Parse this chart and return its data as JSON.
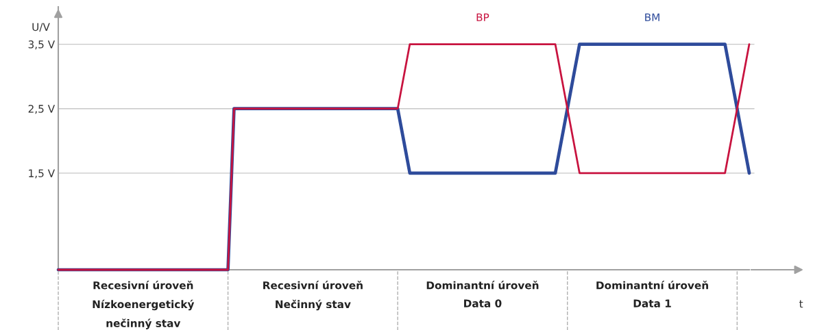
{
  "chart_data": {
    "type": "line",
    "ylabel": "U/V",
    "xlabel": "t",
    "categories": [
      null,
      null,
      null,
      null,
      null,
      null,
      null,
      null,
      null,
      null,
      null,
      null,
      null,
      null,
      "Recesivní úroveň\nNízkoenergetický\nnečinný stav",
      null,
      null,
      null,
      null,
      null,
      null,
      null,
      null,
      null,
      null,
      null,
      null,
      null,
      null,
      null,
      null,
      null,
      null,
      null,
      null,
      null,
      null,
      null,
      null,
      null,
      null,
      null,
      "Recesivní úroveň\nNečinný stav",
      null,
      null,
      null,
      null,
      null,
      null,
      null,
      null,
      null,
      null,
      null,
      null,
      null,
      null,
      null,
      null,
      null,
      null,
      null,
      null,
      null,
      null,
      null,
      null,
      null,
      null,
      null,
      "Dominantní úroveň\nData 0",
      null,
      null,
      null,
      null,
      null,
      null,
      null,
      null,
      null,
      null,
      null,
      null,
      null,
      null,
      null,
      null,
      null,
      null,
      null,
      null,
      null,
      null,
      null,
      null,
      null,
      null,
      null,
      "Dominantní úroveň\nData 1",
      null,
      null,
      null,
      null,
      null,
      null,
      null,
      null,
      null,
      null,
      null,
      null,
      null,
      null,
      null,
      null
    ],
    "series": [
      {
        "name": "BP",
        "color": "#c8133f",
        "values": [
          0,
          0,
          0,
          0,
          0,
          0,
          0,
          0,
          0,
          0,
          0,
          0,
          0,
          0,
          0,
          0,
          0,
          0,
          0,
          0,
          0,
          0,
          0,
          0,
          0,
          0,
          0,
          0,
          0,
          2.5,
          2.5,
          2.5,
          2.5,
          2.5,
          2.5,
          2.5,
          2.5,
          2.5,
          2.5,
          2.5,
          2.5,
          2.5,
          2.5,
          2.5,
          2.5,
          2.5,
          2.5,
          2.5,
          2.5,
          2.5,
          2.5,
          2.5,
          2.5,
          2.5,
          2.5,
          2.5,
          2.5,
          3.0,
          3.5,
          3.5,
          3.5,
          3.5,
          3.5,
          3.5,
          3.5,
          3.5,
          3.5,
          3.5,
          3.5,
          3.5,
          3.5,
          3.5,
          3.5,
          3.5,
          3.5,
          3.5,
          3.5,
          3.5,
          3.5,
          3.5,
          3.5,
          3.5,
          3.5,
          3.0,
          2.5,
          2.0,
          1.5,
          1.5,
          1.5,
          1.5,
          1.5,
          1.5,
          1.5,
          1.5,
          1.5,
          1.5,
          1.5,
          1.5,
          1.5,
          1.5,
          1.5,
          1.5,
          1.5,
          1.5,
          1.5,
          1.5,
          1.5,
          1.5,
          1.5,
          1.5,
          1.5,
          2.0,
          2.5,
          3.0,
          3.5
        ]
      },
      {
        "name": "BM",
        "color": "#2e4b9b",
        "values": [
          0,
          0,
          0,
          0,
          0,
          0,
          0,
          0,
          0,
          0,
          0,
          0,
          0,
          0,
          0,
          0,
          0,
          0,
          0,
          0,
          0,
          0,
          0,
          0,
          0,
          0,
          0,
          0,
          0,
          2.5,
          2.5,
          2.5,
          2.5,
          2.5,
          2.5,
          2.5,
          2.5,
          2.5,
          2.5,
          2.5,
          2.5,
          2.5,
          2.5,
          2.5,
          2.5,
          2.5,
          2.5,
          2.5,
          2.5,
          2.5,
          2.5,
          2.5,
          2.5,
          2.5,
          2.5,
          2.5,
          2.5,
          2.0,
          1.5,
          1.5,
          1.5,
          1.5,
          1.5,
          1.5,
          1.5,
          1.5,
          1.5,
          1.5,
          1.5,
          1.5,
          1.5,
          1.5,
          1.5,
          1.5,
          1.5,
          1.5,
          1.5,
          1.5,
          1.5,
          1.5,
          1.5,
          1.5,
          1.5,
          2.0,
          2.5,
          3.0,
          3.5,
          3.5,
          3.5,
          3.5,
          3.5,
          3.5,
          3.5,
          3.5,
          3.5,
          3.5,
          3.5,
          3.5,
          3.5,
          3.5,
          3.5,
          3.5,
          3.5,
          3.5,
          3.5,
          3.5,
          3.5,
          3.5,
          3.5,
          3.5,
          3.5,
          3.0,
          2.5,
          2.0,
          1.5
        ]
      }
    ],
    "ylim": [
      0,
      4.08
    ],
    "yticks": [
      {
        "value": 1.5,
        "label": "1,5 V"
      },
      {
        "value": 2.5,
        "label": "2,5 V"
      },
      {
        "value": 3.5,
        "label": "3,5 V"
      }
    ],
    "grid": "y"
  }
}
